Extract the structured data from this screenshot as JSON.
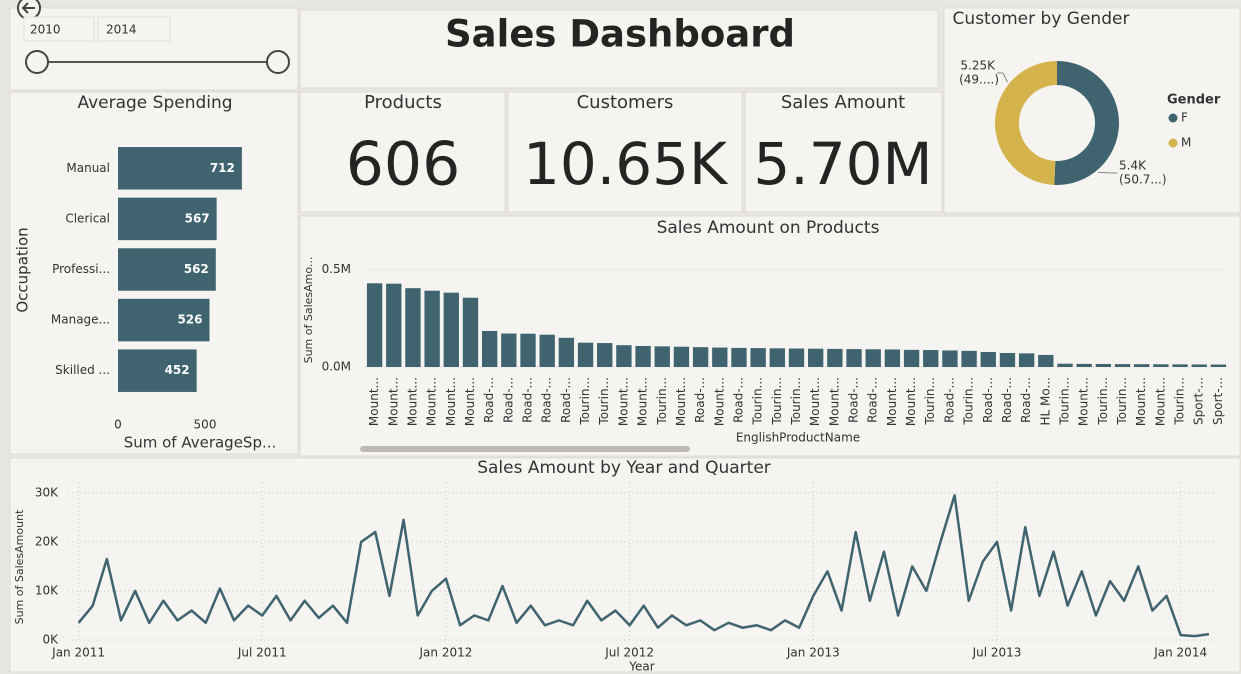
{
  "slicer": {
    "start": "2010",
    "end": "2014"
  },
  "title": "Sales Dashboard",
  "cards": [
    {
      "label": "Products",
      "value": "606"
    },
    {
      "label": "Customers",
      "value": "10.65K"
    },
    {
      "label": "Sales Amount",
      "value": "5.70M"
    }
  ],
  "chart_data": [
    {
      "type": "hbar",
      "title": "Average Spending",
      "categories": [
        "Manual",
        "Clerical",
        "Professi...",
        "Manage...",
        "Skilled ..."
      ],
      "values": [
        712,
        567,
        562,
        526,
        452
      ],
      "color": "#3f6470",
      "xlim": [
        0,
        1000
      ],
      "xticks": [
        0,
        500
      ],
      "x_label": "Sum of AverageSp...",
      "y_label": "Occupation"
    },
    {
      "type": "donut",
      "title": "Customer by Gender",
      "categories": [
        "F",
        "M"
      ],
      "values": [
        5400,
        5250
      ],
      "value_labels": [
        "5.4K",
        "5.25K"
      ],
      "percent_labels": [
        "(50.7...)",
        "(49....)"
      ],
      "colors": [
        "#3f6470",
        "#d4b24c"
      ],
      "legend_title": "Gender"
    },
    {
      "type": "bar",
      "title": "Sales Amount on Products",
      "categories": [
        "Mount...",
        "Mount...",
        "Mount...",
        "Mount...",
        "Mount...",
        "Mount...",
        "Road-...",
        "Road-...",
        "Road-...",
        "Road-...",
        "Road-...",
        "Tourin...",
        "Tourin...",
        "Mount...",
        "Mount...",
        "Tourin...",
        "Mount...",
        "Road-...",
        "Mount...",
        "Road-...",
        "Tourin...",
        "Tourin...",
        "Tourin...",
        "Mount...",
        "Mount...",
        "Road-...",
        "Road-...",
        "Mount...",
        "Mount...",
        "Tourin...",
        "Road-...",
        "Tourin...",
        "Road-...",
        "Road-...",
        "Road-...",
        "HL Mo...",
        "Tourin...",
        "Mount...",
        "Tourin...",
        "Tourin...",
        "Mount...",
        "Mount...",
        "Tourin...",
        "Sport-...",
        "Sport-..."
      ],
      "values": [
        430000,
        428000,
        405000,
        392000,
        382000,
        356000,
        185000,
        172000,
        171000,
        166000,
        150000,
        125000,
        123000,
        112000,
        108000,
        106000,
        104000,
        102000,
        100000,
        98000,
        97000,
        96000,
        95000,
        94000,
        93000,
        92000,
        91000,
        90000,
        88000,
        87000,
        85000,
        83000,
        77000,
        72000,
        70000,
        62000,
        17000,
        16000,
        15500,
        15000,
        14500,
        14000,
        13500,
        13000,
        12500
      ],
      "color": "#3f6470",
      "ylim": [
        0,
        560000
      ],
      "yticks": [
        {
          "value": 0,
          "label": "0.0M"
        },
        {
          "value": 500000,
          "label": "0.5M"
        }
      ],
      "grid": true,
      "x_label": "EnglishProductName",
      "y_label": "Sum of SalesAmo..."
    },
    {
      "type": "line",
      "title": "Sales Amount by Year and Quarter",
      "x": [
        0,
        2,
        4,
        6,
        8,
        10,
        12,
        14,
        16,
        18,
        20,
        22,
        24,
        26,
        28,
        30,
        32,
        34,
        36,
        38,
        40,
        42,
        44,
        46,
        48,
        50,
        52,
        54,
        56,
        58,
        60,
        62,
        64,
        66,
        68,
        70,
        72,
        74,
        76,
        78,
        80,
        82,
        84,
        86,
        88,
        90,
        92,
        94,
        96,
        98,
        100,
        102,
        104,
        106,
        108,
        110,
        112,
        114,
        116,
        118,
        120,
        122,
        124,
        126,
        128,
        130,
        132,
        134,
        136,
        138,
        140,
        142,
        144,
        146,
        148,
        150,
        152,
        154,
        156,
        158,
        160
      ],
      "series": [
        {
          "name": "SalesAmount",
          "color": "#3f6470",
          "values": [
            3500,
            7000,
            16500,
            4000,
            10000,
            3500,
            8000,
            4000,
            6000,
            3500,
            10500,
            4000,
            7000,
            5000,
            9000,
            4000,
            8000,
            4500,
            7000,
            3500,
            20000,
            22000,
            9000,
            24500,
            5000,
            10000,
            12500,
            3000,
            5000,
            4000,
            11000,
            3500,
            7000,
            3000,
            4000,
            3000,
            8000,
            4000,
            6000,
            3000,
            7000,
            2500,
            5000,
            3000,
            4000,
            2000,
            3500,
            2500,
            3000,
            2000,
            4000,
            2500,
            9000,
            14000,
            6000,
            22000,
            8000,
            18000,
            5000,
            15000,
            10000,
            20000,
            29500,
            8000,
            16000,
            20000,
            6000,
            23000,
            9000,
            18000,
            7000,
            14000,
            5000,
            12000,
            8000,
            15000,
            6000,
            9000,
            1000,
            800,
            1200
          ]
        }
      ],
      "xlim": [
        -1.5,
        161
      ],
      "xticks": [
        {
          "value": 0,
          "label": "Jan 2011"
        },
        {
          "value": 26,
          "label": "Jul 2011"
        },
        {
          "value": 52,
          "label": "Jan 2012"
        },
        {
          "value": 78,
          "label": "Jul 2012"
        },
        {
          "value": 104,
          "label": "Jan 2013"
        },
        {
          "value": 130,
          "label": "Jul 2013"
        },
        {
          "value": 156,
          "label": "Jan 2014"
        }
      ],
      "ylim": [
        0,
        32000
      ],
      "yticks": [
        {
          "value": 0,
          "label": "0K"
        },
        {
          "value": 10000,
          "label": "10K"
        },
        {
          "value": 20000,
          "label": "20K"
        },
        {
          "value": 30000,
          "label": "30K"
        }
      ],
      "grid": true,
      "x_label": "Year",
      "y_label": "Sum of SalesAmount"
    }
  ]
}
